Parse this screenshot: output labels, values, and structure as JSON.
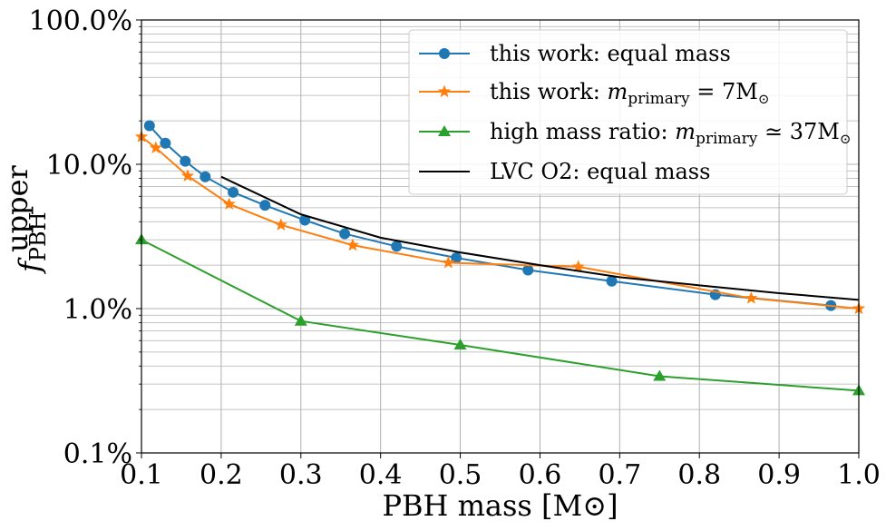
{
  "chart_data": {
    "type": "line",
    "xlabel": "PBH mass [M⊙]",
    "ylabel_main": "f",
    "ylabel_sub": "PBH",
    "ylabel_sup": "upper",
    "xlim": [
      0.1,
      1.0
    ],
    "ylim": [
      0.1,
      100.0
    ],
    "yscale": "log",
    "grid": "on (major and minor)",
    "legend_placement": "top-right",
    "x_ticks": [
      {
        "value": 0.1,
        "label": "0.1"
      },
      {
        "value": 0.2,
        "label": "0.2"
      },
      {
        "value": 0.3,
        "label": "0.3"
      },
      {
        "value": 0.4,
        "label": "0.4"
      },
      {
        "value": 0.5,
        "label": "0.5"
      },
      {
        "value": 0.6,
        "label": "0.6"
      },
      {
        "value": 0.7,
        "label": "0.7"
      },
      {
        "value": 0.8,
        "label": "0.8"
      },
      {
        "value": 0.9,
        "label": "0.9"
      },
      {
        "value": 1.0,
        "label": "1.0"
      }
    ],
    "y_ticks": [
      {
        "value": 0.1,
        "label": "0.1%"
      },
      {
        "value": 1.0,
        "label": "1.0%"
      },
      {
        "value": 10.0,
        "label": "10.0%"
      },
      {
        "value": 100.0,
        "label": "100.0%"
      }
    ],
    "series": [
      {
        "name": "this work: equal mass",
        "color": "#1f77b4",
        "marker": "circle",
        "x": [
          0.11,
          0.13,
          0.155,
          0.18,
          0.215,
          0.255,
          0.305,
          0.355,
          0.42,
          0.495,
          0.585,
          0.69,
          0.82,
          0.965
        ],
        "y": [
          18.5,
          14.0,
          10.5,
          8.2,
          6.4,
          5.2,
          4.1,
          3.3,
          2.7,
          2.25,
          1.85,
          1.55,
          1.25,
          1.05
        ]
      },
      {
        "name": "this work: m_primary = 7M⊙",
        "name_parts": {
          "pre": "this work: ",
          "var": "m",
          "sub": "primary",
          "post": " = 7M",
          "sym": "⊙"
        },
        "color": "#ff7f0e",
        "marker": "star",
        "x": [
          0.1,
          0.118,
          0.158,
          0.21,
          0.275,
          0.365,
          0.485,
          0.648,
          0.865,
          1.0
        ],
        "y": [
          15.5,
          13.0,
          8.3,
          5.3,
          3.8,
          2.75,
          2.08,
          1.95,
          1.18,
          1.0
        ]
      },
      {
        "name": "high mass ratio: m_primary ≃ 37M⊙",
        "name_parts": {
          "pre": "high mass ratio: ",
          "var": "m",
          "sub": "primary",
          "post": " ≃ 37M",
          "sym": "⊙"
        },
        "color": "#2ca02c",
        "marker": "triangle",
        "x": [
          0.1,
          0.3,
          0.5,
          0.75,
          1.0
        ],
        "y": [
          3.0,
          0.82,
          0.56,
          0.34,
          0.27
        ]
      },
      {
        "name": "LVC O2: equal mass",
        "color": "#000000",
        "marker": "none",
        "x": [
          0.2,
          0.3,
          0.4,
          0.5,
          0.6,
          0.7,
          0.8,
          0.9,
          1.0
        ],
        "y": [
          8.2,
          4.5,
          3.1,
          2.45,
          2.0,
          1.65,
          1.45,
          1.28,
          1.15
        ]
      }
    ]
  }
}
